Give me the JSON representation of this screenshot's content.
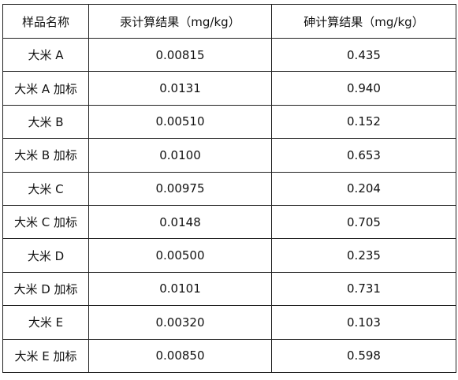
{
  "table": {
    "header": [
      "样品名称",
      "汞计算结果（mg/kg）",
      "砷计算结果（mg/kg）"
    ],
    "rows": [
      [
        "大米 A",
        "0.00815",
        "0.435"
      ],
      [
        "大米 A 加标",
        "0.0131",
        "0.940"
      ],
      [
        "大米 B",
        "0.00510",
        "0.152"
      ],
      [
        "大米 B 加标",
        "0.0100",
        "0.653"
      ],
      [
        "大米 C",
        "0.00975",
        "0.204"
      ],
      [
        "大米 C 加标",
        "0.0148",
        "0.705"
      ],
      [
        "大米 D",
        "0.00500",
        "0.235"
      ],
      [
        "大米 D 加标",
        "0.0101",
        "0.731"
      ],
      [
        "大米 E",
        "0.00320",
        "0.103"
      ],
      [
        "大米 E 加标",
        "0.00850",
        "0.598"
      ]
    ]
  }
}
